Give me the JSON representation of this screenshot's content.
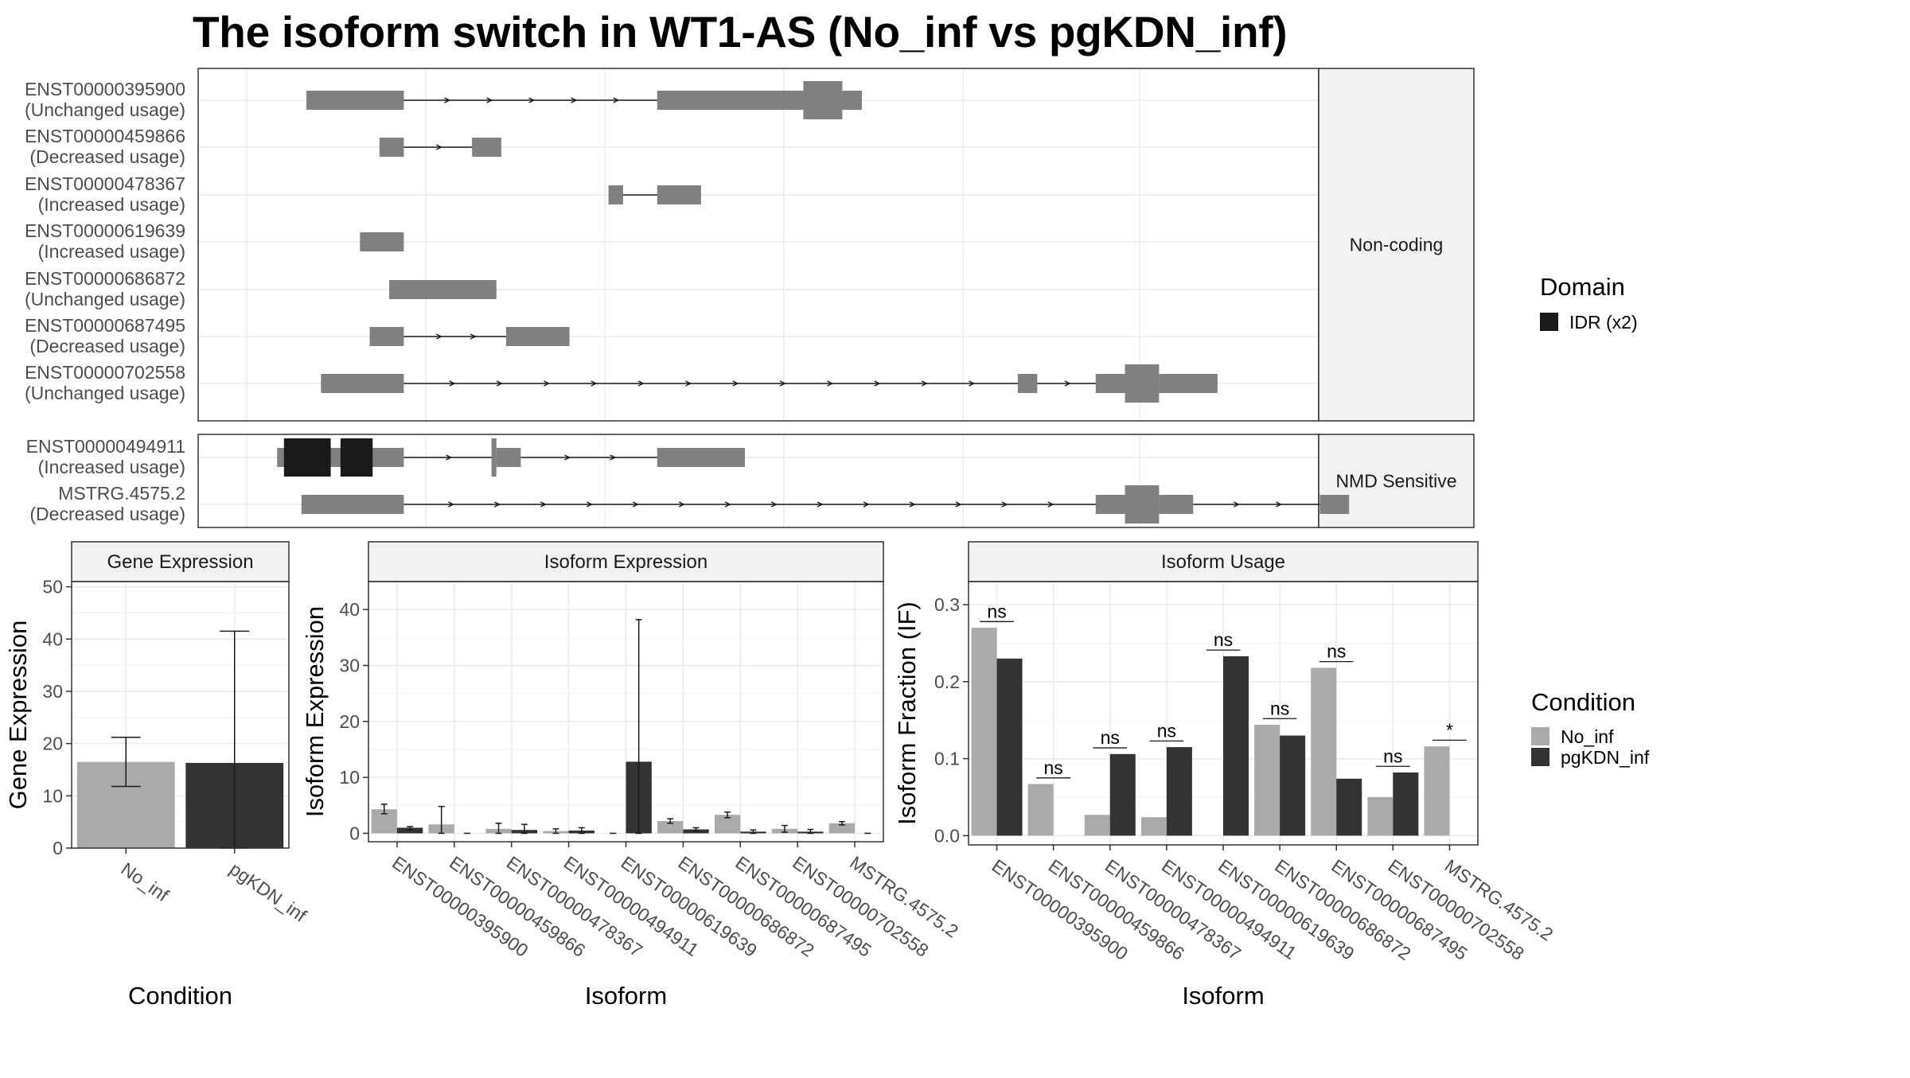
{
  "title": "The isoform switch in WT1-AS (No_inf vs pgKDN_inf)",
  "colors": {
    "no_inf": "#aaaaaa",
    "pgkdn_inf": "#333333",
    "exon": "#808080",
    "idr": "#1a1a1a",
    "strip": "#f2f2f2",
    "grid": "#ebebeb"
  },
  "transcripts": {
    "panels": [
      {
        "label": "Non-coding",
        "rows": [
          {
            "id": "ENST00000395900",
            "status": "(Unchanged usage)",
            "exons": [
              [
                0.06,
                0.16,
                "s"
              ],
              [
                0.42,
                0.57,
                "s"
              ],
              [
                0.57,
                0.61,
                "l"
              ],
              [
                0.61,
                0.63,
                "s"
              ]
            ]
          },
          {
            "id": "ENST00000459866",
            "status": "(Decreased usage)",
            "exons": [
              [
                0.135,
                0.16,
                "s"
              ],
              [
                0.23,
                0.26,
                "s"
              ]
            ]
          },
          {
            "id": "ENST00000478367",
            "status": "(Increased usage)",
            "exons": [
              [
                0.37,
                0.385,
                "s"
              ],
              [
                0.42,
                0.465,
                "s"
              ]
            ],
            "plain_intron": true
          },
          {
            "id": "ENST00000619639",
            "status": "(Increased usage)",
            "exons": [
              [
                0.115,
                0.16,
                "s"
              ]
            ]
          },
          {
            "id": "ENST00000686872",
            "status": "(Unchanged usage)",
            "exons": [
              [
                0.145,
                0.255,
                "s"
              ]
            ]
          },
          {
            "id": "ENST00000687495",
            "status": "(Decreased usage)",
            "exons": [
              [
                0.125,
                0.16,
                "s"
              ],
              [
                0.265,
                0.33,
                "s"
              ]
            ]
          },
          {
            "id": "ENST00000702558",
            "status": "(Unchanged usage)",
            "exons": [
              [
                0.075,
                0.16,
                "s"
              ],
              [
                0.79,
                0.81,
                "s"
              ],
              [
                0.87,
                0.9,
                "s"
              ],
              [
                0.9,
                0.935,
                "l"
              ],
              [
                0.935,
                0.995,
                "s"
              ]
            ]
          }
        ]
      },
      {
        "label": "NMD Sensitive",
        "rows": [
          {
            "id": "ENST00000494911",
            "status": "(Increased usage)",
            "exons": [
              [
                0.03,
                0.16,
                "s"
              ],
              [
                0.25,
                0.255,
                "l"
              ],
              [
                0.255,
                0.28,
                "s"
              ],
              [
                0.42,
                0.51,
                "s"
              ]
            ],
            "domains": [
              [
                0.037,
                0.085
              ],
              [
                0.095,
                0.128
              ]
            ]
          },
          {
            "id": "MSTRG.4575.2",
            "status": "(Decreased usage)",
            "exons": [
              [
                0.055,
                0.16,
                "s"
              ],
              [
                0.87,
                0.9,
                "s"
              ],
              [
                0.9,
                0.935,
                "l"
              ],
              [
                0.935,
                0.97,
                "s"
              ],
              [
                1.1,
                1.13,
                "s"
              ]
            ]
          }
        ]
      }
    ]
  },
  "legend_domain": {
    "title": "Domain",
    "items": [
      {
        "label": "IDR (x2)",
        "color": "#1a1a1a"
      }
    ]
  },
  "legend_condition": {
    "title": "Condition",
    "items": [
      {
        "label": "No_inf",
        "color": "#aaaaaa"
      },
      {
        "label": "pgKDN_inf",
        "color": "#333333"
      }
    ]
  },
  "chart_data": [
    {
      "type": "bar",
      "title": "Gene Expression",
      "xlabel": "Condition",
      "ylabel": "Gene Expression",
      "ylim": [
        0,
        51
      ],
      "yticks": [
        0,
        10,
        20,
        30,
        40,
        50
      ],
      "categories": [
        "No_inf",
        "pgKDN_inf"
      ],
      "values": [
        16.5,
        16.3
      ],
      "error_low": [
        11.8,
        0
      ],
      "error_high": [
        21.2,
        41.5
      ]
    },
    {
      "type": "bar",
      "title": "Isoform Expression",
      "xlabel": "Isoform",
      "ylabel": "Isoform Expression",
      "ylim": [
        -1.5,
        45
      ],
      "yticks": [
        0,
        10,
        20,
        30,
        40
      ],
      "categories": [
        "ENST00000395900",
        "ENST00000459866",
        "ENST00000478367",
        "ENST00000494911",
        "ENST00000619639",
        "ENST00000686872",
        "ENST00000687495",
        "ENST00000702558",
        "MSTRG.4575.2"
      ],
      "series": [
        {
          "name": "No_inf",
          "values": [
            4.3,
            1.6,
            0.8,
            0.4,
            0,
            2.2,
            3.3,
            0.8,
            1.8
          ],
          "err": [
            [
              3.5,
              5.2
            ],
            [
              0,
              4.8
            ],
            [
              0,
              1.8
            ],
            [
              0,
              0.8
            ],
            null,
            [
              1.8,
              2.6
            ],
            [
              2.8,
              3.8
            ],
            [
              0.2,
              1.4
            ],
            [
              1.5,
              2.1
            ]
          ]
        },
        {
          "name": "pgKDN_inf",
          "values": [
            1.0,
            0,
            0.6,
            0.5,
            12.8,
            0.7,
            0.3,
            0.3,
            0
          ],
          "err": [
            [
              0.6,
              1.2
            ],
            null,
            [
              0,
              1.6
            ],
            [
              0,
              1.0
            ],
            [
              0,
              38.2
            ],
            [
              0.4,
              1.0
            ],
            [
              0,
              0.6
            ],
            [
              0,
              0.7
            ],
            null
          ]
        }
      ]
    },
    {
      "type": "bar",
      "title": "Isoform Usage",
      "xlabel": "Isoform",
      "ylabel": "Isoform Fraction (IF)",
      "ylim": [
        -0.012,
        0.33
      ],
      "yticks": [
        0.0,
        0.1,
        0.2,
        0.3
      ],
      "categories": [
        "ENST00000395900",
        "ENST00000459866",
        "ENST00000478367",
        "ENST00000494911",
        "ENST00000619639",
        "ENST00000686872",
        "ENST00000687495",
        "ENST00000702558",
        "MSTRG.4575.2"
      ],
      "series": [
        {
          "name": "No_inf",
          "values": [
            0.27,
            0.067,
            0.027,
            0.024,
            0,
            0.144,
            0.218,
            0.05,
            0.116
          ]
        },
        {
          "name": "pgKDN_inf",
          "values": [
            0.23,
            0,
            0.106,
            0.115,
            0.233,
            0.13,
            0.074,
            0.082,
            0
          ]
        }
      ],
      "significance": [
        "ns",
        "ns",
        "ns",
        "ns",
        "ns",
        "ns",
        "ns",
        "ns",
        "*"
      ]
    }
  ]
}
